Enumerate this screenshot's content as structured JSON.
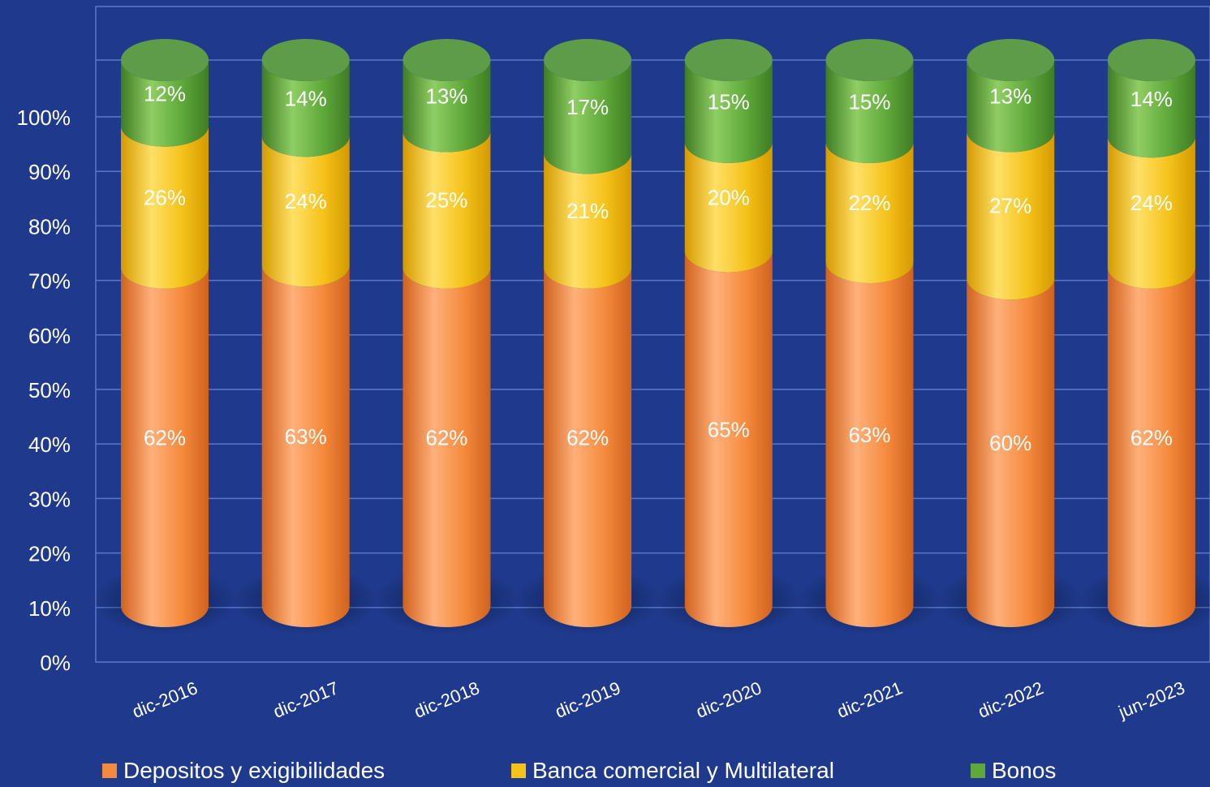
{
  "colors": {
    "background": "#1f3a8c",
    "gridline": "#5b78c8",
    "axis_text": "#ffffff",
    "depositos": "#f58a3c",
    "banca": "#f5c21a",
    "bonos": "#5fa83a"
  },
  "chart_data": {
    "type": "bar",
    "stacked": true,
    "style": "3d-cylinder",
    "categories": [
      "dic-2016",
      "dic-2017",
      "dic-2018",
      "dic-2019",
      "dic-2020",
      "dic-2021",
      "dic-2022",
      "jun-2023"
    ],
    "series": [
      {
        "name": "Depositos y exigibilidades",
        "values": [
          62,
          63,
          62,
          62,
          65,
          63,
          60,
          62
        ],
        "labels": [
          "62%",
          "63%",
          "62%",
          "62%",
          "65%",
          "63%",
          "60%",
          "62%"
        ]
      },
      {
        "name": "Banca comercial y Multilateral",
        "values": [
          26,
          24,
          25,
          21,
          20,
          22,
          27,
          24
        ],
        "labels": [
          "26%",
          "24%",
          "25%",
          "21%",
          "20%",
          "22%",
          "27%",
          "24%"
        ]
      },
      {
        "name": "Bonos",
        "values": [
          12,
          14,
          13,
          17,
          15,
          15,
          13,
          14
        ],
        "labels": [
          "12%",
          "14%",
          "13%",
          "17%",
          "15%",
          "15%",
          "13%",
          "14%"
        ]
      }
    ],
    "y_ticks": [
      "0%",
      "10%",
      "20%",
      "30%",
      "40%",
      "50%",
      "60%",
      "70%",
      "80%",
      "90%",
      "100%"
    ],
    "ylim": [
      0,
      100
    ],
    "grid": true,
    "legend_position": "bottom"
  }
}
